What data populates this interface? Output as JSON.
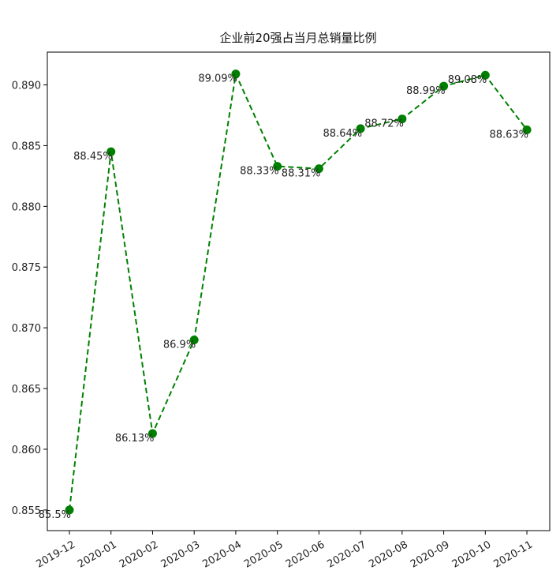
{
  "chart_data": {
    "type": "line",
    "title": "企业前20强占当月总销量比例",
    "xlabel": "",
    "ylabel": "",
    "categories": [
      "2019-12",
      "2020-01",
      "2020-02",
      "2020-03",
      "2020-04",
      "2020-05",
      "2020-06",
      "2020-07",
      "2020-08",
      "2020-09",
      "2020-10",
      "2020-11"
    ],
    "series": [
      {
        "values": [
          0.855,
          0.8845,
          0.8613,
          0.869,
          0.8909,
          0.8833,
          0.8831,
          0.8864,
          0.8872,
          0.8899,
          0.8908,
          0.8863
        ],
        "labels": [
          "85.5%",
          "88.45%",
          "86.13%",
          "86.9%",
          "89.09%",
          "88.33%",
          "88.31%",
          "88.64%",
          "88.72%",
          "88.99%",
          "89.08%",
          "88.63%"
        ],
        "color": "#008000",
        "line_style": "dashed",
        "marker": "circle"
      }
    ],
    "yticks": [
      0.855,
      0.86,
      0.865,
      0.87,
      0.875,
      0.88,
      0.885,
      0.89
    ],
    "ytick_labels": [
      "0.855",
      "0.860",
      "0.865",
      "0.870",
      "0.875",
      "0.880",
      "0.885",
      "0.890"
    ],
    "ylim": [
      0.8533,
      0.8927
    ],
    "grid": false,
    "legend": "none"
  }
}
